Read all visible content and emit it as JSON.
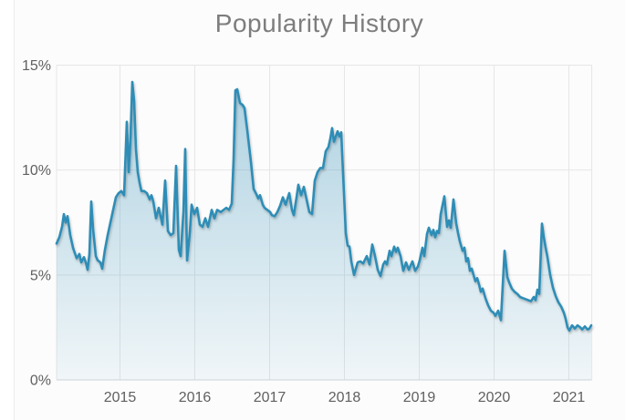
{
  "page": {
    "background_color": "#ffffff",
    "card_background_color": "#fcfcfc"
  },
  "chart_data": {
    "type": "area",
    "title": "Popularity History",
    "title_color": "#7d7d7d",
    "xlabel": "",
    "ylabel": "",
    "xlim": [
      2014.15,
      2021.31
    ],
    "ylim": [
      0,
      15
    ],
    "grid": true,
    "legend": false,
    "line_color": "#2f8db6",
    "fill_top_color": "rgba(47,141,182,0.40)",
    "fill_bottom_color": "rgba(47,141,182,0.06)",
    "grid_color": "#e6e6e6",
    "axis_line_color": "#ccd3dd",
    "axis_label_color": "#606060",
    "x_ticks": [
      {
        "value": 2015,
        "label": "2015"
      },
      {
        "value": 2016,
        "label": "2016"
      },
      {
        "value": 2017,
        "label": "2017"
      },
      {
        "value": 2018,
        "label": "2018"
      },
      {
        "value": 2019,
        "label": "2019"
      },
      {
        "value": 2020,
        "label": "2020"
      },
      {
        "value": 2021,
        "label": "2021"
      }
    ],
    "y_ticks": [
      {
        "value": 0,
        "label": "0%"
      },
      {
        "value": 5,
        "label": "5%"
      },
      {
        "value": 10,
        "label": "10%"
      },
      {
        "value": 15,
        "label": "15%"
      }
    ],
    "series": [
      {
        "name": "popularity",
        "unit": "%",
        "points": [
          [
            2014.152,
            6.5
          ],
          [
            2014.189,
            6.8
          ],
          [
            2014.226,
            7.3
          ],
          [
            2014.25,
            7.9
          ],
          [
            2014.274,
            7.5
          ],
          [
            2014.299,
            7.8
          ],
          [
            2014.335,
            6.9
          ],
          [
            2014.372,
            6.3
          ],
          [
            2014.421,
            5.8
          ],
          [
            2014.457,
            6.0
          ],
          [
            2014.482,
            5.6
          ],
          [
            2014.518,
            5.85
          ],
          [
            2014.543,
            5.6
          ],
          [
            2014.567,
            5.25
          ],
          [
            2014.591,
            6.0
          ],
          [
            2014.616,
            8.5
          ],
          [
            2014.64,
            7.2
          ],
          [
            2014.677,
            5.9
          ],
          [
            2014.701,
            5.7
          ],
          [
            2014.738,
            5.6
          ],
          [
            2014.762,
            5.3
          ],
          [
            2014.799,
            6.2
          ],
          [
            2014.835,
            6.9
          ],
          [
            2014.872,
            7.5
          ],
          [
            2014.909,
            8.1
          ],
          [
            2014.945,
            8.7
          ],
          [
            2014.982,
            8.9
          ],
          [
            2015.018,
            9.0
          ],
          [
            2015.055,
            8.8
          ],
          [
            2015.091,
            12.3
          ],
          [
            2015.116,
            9.9
          ],
          [
            2015.14,
            11.5
          ],
          [
            2015.165,
            14.2
          ],
          [
            2015.189,
            13.3
          ],
          [
            2015.213,
            11.0
          ],
          [
            2015.238,
            9.9
          ],
          [
            2015.262,
            9.4
          ],
          [
            2015.287,
            9.0
          ],
          [
            2015.323,
            9.0
          ],
          [
            2015.36,
            8.9
          ],
          [
            2015.396,
            8.6
          ],
          [
            2015.421,
            8.8
          ],
          [
            2015.445,
            8.5
          ],
          [
            2015.482,
            7.7
          ],
          [
            2015.518,
            8.2
          ],
          [
            2015.567,
            7.4
          ],
          [
            2015.604,
            9.5
          ],
          [
            2015.64,
            7.1
          ],
          [
            2015.677,
            6.9
          ],
          [
            2015.713,
            7.0
          ],
          [
            2015.75,
            10.2
          ],
          [
            2015.787,
            6.2
          ],
          [
            2015.811,
            5.9
          ],
          [
            2015.848,
            8.0
          ],
          [
            2015.872,
            11.0
          ],
          [
            2015.896,
            5.7
          ],
          [
            2015.933,
            7.0
          ],
          [
            2015.957,
            8.35
          ],
          [
            2015.994,
            7.9
          ],
          [
            2016.03,
            8.2
          ],
          [
            2016.067,
            7.4
          ],
          [
            2016.104,
            7.3
          ],
          [
            2016.14,
            7.7
          ],
          [
            2016.177,
            7.3
          ],
          [
            2016.226,
            8.1
          ],
          [
            2016.262,
            7.7
          ],
          [
            2016.299,
            8.1
          ],
          [
            2016.348,
            8.0
          ],
          [
            2016.384,
            8.1
          ],
          [
            2016.421,
            8.2
          ],
          [
            2016.457,
            8.1
          ],
          [
            2016.494,
            8.4
          ],
          [
            2016.518,
            10.5
          ],
          [
            2016.543,
            13.8
          ],
          [
            2016.567,
            13.85
          ],
          [
            2016.604,
            13.2
          ],
          [
            2016.64,
            13.1
          ],
          [
            2016.665,
            12.95
          ],
          [
            2016.701,
            11.9
          ],
          [
            2016.75,
            10.4
          ],
          [
            2016.787,
            9.1
          ],
          [
            2016.823,
            8.85
          ],
          [
            2016.848,
            8.65
          ],
          [
            2016.872,
            8.8
          ],
          [
            2016.909,
            8.35
          ],
          [
            2016.933,
            8.2
          ],
          [
            2016.97,
            8.1
          ],
          [
            2017.006,
            8.0
          ],
          [
            2017.03,
            7.85
          ],
          [
            2017.067,
            7.8
          ],
          [
            2017.104,
            8.0
          ],
          [
            2017.14,
            8.3
          ],
          [
            2017.177,
            8.7
          ],
          [
            2017.213,
            8.35
          ],
          [
            2017.262,
            8.9
          ],
          [
            2017.299,
            8.1
          ],
          [
            2017.323,
            7.85
          ],
          [
            2017.36,
            8.7
          ],
          [
            2017.384,
            9.3
          ],
          [
            2017.421,
            8.8
          ],
          [
            2017.457,
            9.2
          ],
          [
            2017.494,
            8.6
          ],
          [
            2017.53,
            8.0
          ],
          [
            2017.567,
            7.9
          ],
          [
            2017.604,
            9.5
          ],
          [
            2017.64,
            9.9
          ],
          [
            2017.677,
            10.1
          ],
          [
            2017.713,
            10.1
          ],
          [
            2017.75,
            10.9
          ],
          [
            2017.787,
            11.1
          ],
          [
            2017.811,
            11.5
          ],
          [
            2017.835,
            12.0
          ],
          [
            2017.86,
            11.35
          ],
          [
            2017.884,
            11.6
          ],
          [
            2017.909,
            11.85
          ],
          [
            2017.933,
            11.6
          ],
          [
            2017.957,
            11.8
          ],
          [
            2017.97,
            10.8
          ],
          [
            2017.994,
            8.9
          ],
          [
            2018.018,
            7.0
          ],
          [
            2018.043,
            6.4
          ],
          [
            2018.067,
            6.35
          ],
          [
            2018.091,
            5.65
          ],
          [
            2018.128,
            5.0
          ],
          [
            2018.177,
            5.6
          ],
          [
            2018.213,
            5.65
          ],
          [
            2018.25,
            5.55
          ],
          [
            2018.299,
            5.9
          ],
          [
            2018.335,
            5.5
          ],
          [
            2018.372,
            6.45
          ],
          [
            2018.409,
            5.9
          ],
          [
            2018.445,
            5.25
          ],
          [
            2018.482,
            4.95
          ],
          [
            2018.518,
            5.5
          ],
          [
            2018.543,
            5.65
          ],
          [
            2018.567,
            5.5
          ],
          [
            2018.604,
            6.15
          ],
          [
            2018.628,
            5.9
          ],
          [
            2018.665,
            6.35
          ],
          [
            2018.689,
            6.1
          ],
          [
            2018.714,
            6.3
          ],
          [
            2018.75,
            5.9
          ],
          [
            2018.787,
            5.2
          ],
          [
            2018.823,
            5.6
          ],
          [
            2018.86,
            5.25
          ],
          [
            2018.909,
            5.65
          ],
          [
            2018.945,
            5.2
          ],
          [
            2018.982,
            5.4
          ],
          [
            2019.006,
            5.7
          ],
          [
            2019.043,
            6.3
          ],
          [
            2019.067,
            5.9
          ],
          [
            2019.104,
            6.95
          ],
          [
            2019.128,
            7.25
          ],
          [
            2019.165,
            6.9
          ],
          [
            2019.189,
            7.15
          ],
          [
            2019.213,
            6.8
          ],
          [
            2019.238,
            7.1
          ],
          [
            2019.262,
            7.0
          ],
          [
            2019.287,
            7.9
          ],
          [
            2019.335,
            8.75
          ],
          [
            2019.372,
            7.3
          ],
          [
            2019.396,
            7.6
          ],
          [
            2019.421,
            7.25
          ],
          [
            2019.457,
            8.6
          ],
          [
            2019.494,
            7.45
          ],
          [
            2019.518,
            7.0
          ],
          [
            2019.543,
            6.6
          ],
          [
            2019.579,
            6.15
          ],
          [
            2019.604,
            6.3
          ],
          [
            2019.628,
            5.65
          ],
          [
            2019.652,
            5.8
          ],
          [
            2019.677,
            5.2
          ],
          [
            2019.701,
            5.3
          ],
          [
            2019.726,
            5.0
          ],
          [
            2019.75,
            4.7
          ],
          [
            2019.774,
            4.85
          ],
          [
            2019.799,
            4.55
          ],
          [
            2019.823,
            4.2
          ],
          [
            2019.848,
            4.35
          ],
          [
            2019.884,
            3.9
          ],
          [
            2019.921,
            3.55
          ],
          [
            2019.957,
            3.3
          ],
          [
            2019.994,
            3.2
          ],
          [
            2020.018,
            3.05
          ],
          [
            2020.055,
            3.3
          ],
          [
            2020.091,
            2.85
          ],
          [
            2020.14,
            6.15
          ],
          [
            2020.177,
            4.9
          ],
          [
            2020.201,
            4.65
          ],
          [
            2020.238,
            4.35
          ],
          [
            2020.274,
            4.2
          ],
          [
            2020.311,
            4.1
          ],
          [
            2020.348,
            3.95
          ],
          [
            2020.384,
            3.9
          ],
          [
            2020.421,
            3.85
          ],
          [
            2020.457,
            3.8
          ],
          [
            2020.494,
            3.75
          ],
          [
            2020.53,
            3.95
          ],
          [
            2020.555,
            3.8
          ],
          [
            2020.579,
            4.3
          ],
          [
            2020.604,
            4.1
          ],
          [
            2020.64,
            7.45
          ],
          [
            2020.665,
            6.8
          ],
          [
            2020.689,
            6.3
          ],
          [
            2020.713,
            5.85
          ],
          [
            2020.75,
            5.0
          ],
          [
            2020.787,
            4.4
          ],
          [
            2020.823,
            4.0
          ],
          [
            2020.86,
            3.7
          ],
          [
            2020.896,
            3.5
          ],
          [
            2020.933,
            3.2
          ],
          [
            2020.957,
            2.9
          ],
          [
            2020.982,
            2.5
          ],
          [
            2021.006,
            2.35
          ],
          [
            2021.043,
            2.6
          ],
          [
            2021.079,
            2.45
          ],
          [
            2021.116,
            2.6
          ],
          [
            2021.152,
            2.5
          ],
          [
            2021.177,
            2.4
          ],
          [
            2021.213,
            2.55
          ],
          [
            2021.25,
            2.4
          ],
          [
            2021.274,
            2.45
          ],
          [
            2021.299,
            2.6
          ]
        ]
      }
    ]
  }
}
